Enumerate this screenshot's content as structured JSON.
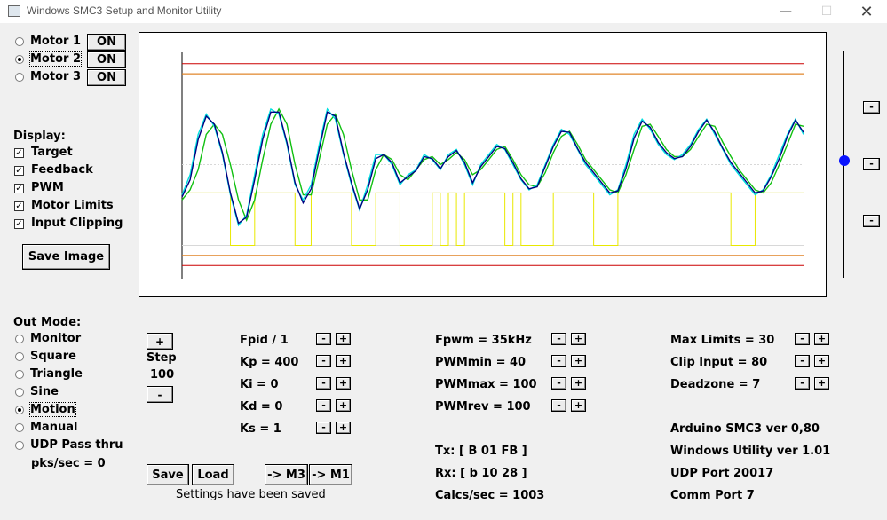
{
  "window": {
    "title": "Windows SMC3 Setup and Monitor Utility"
  },
  "motors": [
    {
      "label": "Motor 1",
      "button": "ON",
      "selected": false
    },
    {
      "label": "Motor 2",
      "button": "ON",
      "selected": true
    },
    {
      "label": "Motor 3",
      "button": "ON",
      "selected": false
    }
  ],
  "display": {
    "heading": "Display:",
    "options": [
      "Target",
      "Feedback",
      "PWM",
      "Motor Limits",
      "Input Clipping"
    ],
    "save_image": "Save Image"
  },
  "out_mode": {
    "heading": "Out Mode:",
    "options": [
      "Monitor",
      "Square",
      "Triangle",
      "Sine",
      "Motion",
      "Manual",
      "UDP Pass thru"
    ],
    "selected": "Motion",
    "pks": "pks/sec = 0"
  },
  "step": {
    "plus": "+",
    "label": "Step",
    "value": "100",
    "minus": "-"
  },
  "pid": [
    "Fpid / 1",
    "Kp = 400",
    "Ki = 0",
    "Kd = 0",
    "Ks = 1"
  ],
  "pwm": [
    "Fpwm = 35kHz",
    "PWMmin = 40",
    "PWMmax = 100",
    "PWMrev = 100"
  ],
  "limits": [
    "Max Limits = 30",
    "Clip Input = 80",
    "Deadzone = 7"
  ],
  "comms": {
    "tx": "Tx: [ B 01 FB ]",
    "rx": "Rx: [ b 10 28 ]",
    "calcs": "Calcs/sec = 1003"
  },
  "info": [
    "Arduino SMC3 ver 0,80",
    "Windows Utility ver 1.01",
    "UDP Port 20017",
    "Comm Port 7"
  ],
  "buttons": {
    "save": "Save",
    "load": "Load",
    "m3": "-> M3",
    "m1": "-> M1"
  },
  "status": "Settings have been saved",
  "small": {
    "minus": "-",
    "plus": "+"
  },
  "chart_data": {
    "type": "line",
    "title": "",
    "xlabel": "",
    "ylabel": "",
    "x": [
      0,
      3,
      6,
      9,
      12,
      15,
      18,
      21,
      24,
      27,
      30,
      33,
      36,
      39,
      42,
      45,
      48,
      51,
      54,
      57,
      60,
      63,
      66,
      69,
      72,
      75,
      78,
      81,
      84,
      87,
      90,
      93,
      96,
      99,
      102,
      105,
      108,
      111,
      114,
      117,
      120,
      123,
      126,
      129,
      132,
      135,
      138,
      141,
      144,
      147,
      150,
      153,
      156,
      159,
      162,
      165,
      168,
      171,
      174,
      177,
      180,
      183,
      186,
      189,
      192,
      195,
      198,
      201,
      204,
      207,
      210,
      213,
      216,
      219,
      222,
      225,
      228,
      231
    ],
    "ylim": [
      -1.2,
      1.2
    ],
    "series": [
      {
        "color": "#00e0e0",
        "values": [
          -0.3,
          -0.1,
          0.3,
          0.5,
          0.38,
          0.1,
          -0.3,
          -0.6,
          -0.5,
          -0.1,
          0.3,
          0.55,
          0.5,
          0.2,
          -0.2,
          -0.35,
          -0.2,
          0.2,
          0.55,
          0.45,
          0.1,
          -0.2,
          -0.45,
          -0.2,
          0.1,
          0.1,
          0.0,
          -0.2,
          -0.1,
          -0.05,
          0.1,
          0.05,
          -0.05,
          0.1,
          0.15,
          0.0,
          -0.2,
          0.0,
          0.1,
          0.2,
          0.15,
          0.0,
          -0.15,
          -0.25,
          -0.2,
          0.0,
          0.2,
          0.35,
          0.3,
          0.15,
          0.0,
          -0.1,
          -0.2,
          -0.3,
          -0.25,
          0.0,
          0.3,
          0.45,
          0.35,
          0.2,
          0.1,
          0.05,
          0.1,
          0.2,
          0.35,
          0.45,
          0.3,
          0.15,
          0.0,
          -0.1,
          -0.2,
          -0.3,
          -0.25,
          -0.1,
          0.1,
          0.3,
          0.45,
          0.3
        ]
      },
      {
        "color": "#000080",
        "values": [
          -0.32,
          -0.15,
          0.25,
          0.48,
          0.4,
          0.12,
          -0.28,
          -0.58,
          -0.52,
          -0.15,
          0.25,
          0.52,
          0.52,
          0.22,
          -0.18,
          -0.38,
          -0.24,
          0.15,
          0.52,
          0.48,
          0.12,
          -0.18,
          -0.44,
          -0.25,
          0.06,
          0.1,
          0.02,
          -0.18,
          -0.12,
          -0.06,
          0.08,
          0.06,
          -0.04,
          0.08,
          0.14,
          0.02,
          -0.18,
          -0.02,
          0.08,
          0.18,
          0.16,
          0.02,
          -0.14,
          -0.24,
          -0.22,
          -0.02,
          0.18,
          0.33,
          0.32,
          0.16,
          0.02,
          -0.08,
          -0.18,
          -0.28,
          -0.26,
          -0.04,
          0.26,
          0.43,
          0.37,
          0.22,
          0.12,
          0.06,
          0.08,
          0.18,
          0.33,
          0.44,
          0.32,
          0.16,
          0.02,
          -0.08,
          -0.18,
          -0.28,
          -0.26,
          -0.12,
          0.06,
          0.28,
          0.44,
          0.32
        ]
      },
      {
        "color": "#10c010",
        "values": [
          -0.35,
          -0.25,
          -0.05,
          0.3,
          0.4,
          0.3,
          0.0,
          -0.35,
          -0.55,
          -0.35,
          0.05,
          0.4,
          0.55,
          0.4,
          0.0,
          -0.3,
          -0.3,
          0.05,
          0.4,
          0.5,
          0.3,
          -0.05,
          -0.35,
          -0.35,
          -0.05,
          0.1,
          0.05,
          -0.1,
          -0.15,
          -0.05,
          0.05,
          0.08,
          0.0,
          0.05,
          0.12,
          0.05,
          -0.1,
          -0.05,
          0.05,
          0.15,
          0.18,
          0.05,
          -0.1,
          -0.2,
          -0.22,
          -0.08,
          0.12,
          0.28,
          0.33,
          0.2,
          0.05,
          -0.05,
          -0.15,
          -0.25,
          -0.28,
          -0.1,
          0.15,
          0.38,
          0.4,
          0.28,
          0.15,
          0.08,
          0.08,
          0.15,
          0.28,
          0.4,
          0.38,
          0.22,
          0.08,
          -0.05,
          -0.15,
          -0.25,
          -0.28,
          -0.18,
          0.0,
          0.2,
          0.4,
          0.38
        ]
      },
      {
        "color": "#e8e800",
        "values": [
          -0.28,
          -0.28,
          -0.28,
          -0.28,
          -0.28,
          -0.28,
          -0.8,
          -0.8,
          -0.8,
          -0.28,
          -0.28,
          -0.28,
          -0.28,
          -0.28,
          -0.8,
          -0.8,
          -0.28,
          -0.28,
          -0.28,
          -0.28,
          -0.28,
          -0.8,
          -0.8,
          -0.8,
          -0.28,
          -0.28,
          -0.28,
          -0.8,
          -0.8,
          -0.8,
          -0.8,
          -0.28,
          -0.8,
          -0.28,
          -0.8,
          -0.28,
          -0.28,
          -0.28,
          -0.28,
          -0.28,
          -0.8,
          -0.28,
          -0.8,
          -0.8,
          -0.8,
          -0.8,
          -0.28,
          -0.28,
          -0.28,
          -0.28,
          -0.28,
          -0.8,
          -0.8,
          -0.8,
          -0.28,
          -0.28,
          -0.28,
          -0.28,
          -0.28,
          -0.28,
          -0.28,
          -0.28,
          -0.28,
          -0.28,
          -0.28,
          -0.28,
          -0.28,
          -0.28,
          -0.8,
          -0.8,
          -0.8,
          -0.28,
          -0.28,
          -0.28,
          -0.28,
          -0.28,
          -0.28,
          -0.28
        ]
      }
    ],
    "limit_lines": [
      {
        "color": "#cc0000",
        "value": 1.0
      },
      {
        "color": "#e07000",
        "value": 0.9
      },
      {
        "color": "#e07000",
        "value": -0.9
      },
      {
        "color": "#cc0000",
        "value": -1.0
      }
    ]
  }
}
